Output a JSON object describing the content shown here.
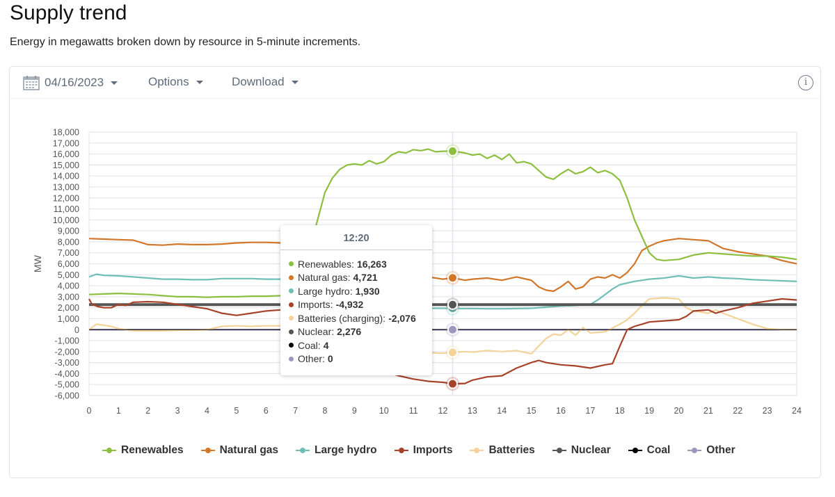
{
  "header": {
    "title": "Supply trend",
    "subtitle": "Energy in megawatts broken down by resource in 5-minute increments."
  },
  "toolbar": {
    "date_label": "04/16/2023",
    "options_label": "Options",
    "download_label": "Download",
    "calendar_icon": "calendar-icon",
    "info_icon": "info-icon"
  },
  "tooltip": {
    "time": "12:20",
    "rows": [
      {
        "label": "Renewables:",
        "value": "16,263",
        "color": "#8cbf3f"
      },
      {
        "label": "Natural gas:",
        "value": "4,721",
        "color": "#d2762a"
      },
      {
        "label": "Large hydro:",
        "value": "1,930",
        "color": "#6fbfb7"
      },
      {
        "label": "Imports:",
        "value": "-4,932",
        "color": "#a7422a"
      },
      {
        "label": "Batteries (charging):",
        "value": "-2,076",
        "color": "#f3d39a"
      },
      {
        "label": "Nuclear:",
        "value": "2,276",
        "color": "#555555"
      },
      {
        "label": "Coal:",
        "value": "4",
        "color": "#000000"
      },
      {
        "label": "Other:",
        "value": "0",
        "color": "#9d97bd"
      }
    ]
  },
  "chart_data": {
    "type": "line",
    "title": "Supply trend",
    "xlabel": "",
    "ylabel": "MW",
    "xlim": [
      0,
      24
    ],
    "ylim": [
      -6000,
      18000
    ],
    "x_ticks": [
      "0",
      "1",
      "2",
      "3",
      "4",
      "5",
      "6",
      "7",
      "8",
      "9",
      "10",
      "11",
      "12",
      "13",
      "14",
      "15",
      "16",
      "17",
      "18",
      "19",
      "20",
      "21",
      "22",
      "23",
      "24"
    ],
    "y_ticks": [
      "18,000",
      "17,000",
      "16,000",
      "15,000",
      "14,000",
      "13,000",
      "12,000",
      "11,000",
      "10,000",
      "9,000",
      "8,000",
      "7,000",
      "6,000",
      "5,000",
      "4,000",
      "3,000",
      "2,000",
      "1,000",
      "0",
      "-1,000",
      "-2,000",
      "-3,000",
      "-4,000",
      "-5,000",
      "-6,000"
    ],
    "grid": true,
    "legend_position": "bottom",
    "hover_x": 12.33,
    "series": [
      {
        "name": "Renewables",
        "color": "#8cbf3f",
        "x": [
          0,
          0.5,
          1,
          1.5,
          2,
          2.5,
          3,
          3.5,
          4,
          4.5,
          5,
          5.5,
          6,
          6.5,
          7,
          7.25,
          7.5,
          7.75,
          8,
          8.25,
          8.5,
          8.75,
          9,
          9.25,
          9.5,
          9.75,
          10,
          10.25,
          10.5,
          10.75,
          11,
          11.25,
          11.5,
          11.75,
          12,
          12.33,
          12.75,
          13,
          13.25,
          13.5,
          13.75,
          14,
          14.25,
          14.5,
          14.75,
          15,
          15.25,
          15.5,
          15.75,
          16,
          16.25,
          16.5,
          16.75,
          17,
          17.25,
          17.5,
          17.75,
          18,
          18.25,
          18.5,
          18.75,
          19,
          19.25,
          19.5,
          20,
          20.5,
          21,
          21.5,
          22,
          22.5,
          23,
          23.5,
          24
        ],
        "values": [
          3200,
          3250,
          3300,
          3250,
          3200,
          3100,
          3000,
          3000,
          2950,
          3000,
          3000,
          3050,
          3050,
          3100,
          3500,
          5000,
          7500,
          10000,
          12500,
          13800,
          14600,
          15000,
          15100,
          15000,
          15400,
          15100,
          15300,
          15900,
          16200,
          16100,
          16400,
          16300,
          16450,
          16200,
          16250,
          16263,
          16100,
          15900,
          16000,
          15600,
          15900,
          15500,
          16000,
          15200,
          15300,
          15100,
          14500,
          13900,
          13700,
          14200,
          14600,
          14200,
          14400,
          14800,
          14300,
          14500,
          14200,
          13600,
          12000,
          10000,
          8500,
          7000,
          6400,
          6300,
          6400,
          6800,
          7000,
          6900,
          6800,
          6700,
          6700,
          6600,
          6400
        ]
      },
      {
        "name": "Natural gas",
        "color": "#d2762a",
        "x": [
          0,
          0.5,
          1,
          1.5,
          2,
          2.5,
          3,
          3.5,
          4,
          4.5,
          5,
          5.5,
          6,
          6.5,
          7,
          7.5,
          8,
          8.5,
          9,
          9.5,
          10,
          10.5,
          11,
          11.5,
          12,
          12.33,
          12.75,
          13,
          13.5,
          14,
          14.5,
          15,
          15.25,
          15.5,
          15.75,
          16,
          16.25,
          16.5,
          16.75,
          17,
          17.25,
          17.5,
          17.75,
          18,
          18.25,
          18.5,
          18.75,
          19,
          19.25,
          19.5,
          20,
          20.5,
          21,
          21.5,
          22,
          22.5,
          23,
          23.5,
          24
        ],
        "values": [
          8300,
          8250,
          8200,
          8150,
          7750,
          7700,
          7800,
          7750,
          7750,
          7800,
          7900,
          7950,
          7950,
          7900,
          7850,
          7600,
          7000,
          6200,
          5500,
          5000,
          4700,
          4600,
          4700,
          4800,
          4600,
          4721,
          4500,
          4600,
          4700,
          4500,
          4800,
          4500,
          3900,
          3600,
          3500,
          3900,
          4400,
          3700,
          3900,
          4600,
          4800,
          4700,
          5000,
          4700,
          5200,
          6000,
          7200,
          7600,
          7900,
          8100,
          8300,
          8200,
          8100,
          7400,
          7100,
          6900,
          6700,
          6300,
          6000
        ]
      },
      {
        "name": "Large hydro",
        "color": "#6fbfb7",
        "x": [
          0,
          0.25,
          0.5,
          1,
          1.5,
          2,
          2.5,
          3,
          3.5,
          4,
          4.5,
          5,
          5.5,
          6,
          6.5,
          7,
          7.5,
          8,
          8.5,
          9,
          9.5,
          10,
          10.5,
          11,
          11.5,
          12,
          12.33,
          13,
          13.5,
          14,
          14.5,
          15,
          15.5,
          16,
          16.5,
          17,
          17.25,
          17.5,
          17.75,
          18,
          18.5,
          19,
          19.5,
          20,
          20.5,
          21,
          21.5,
          22,
          22.5,
          23,
          23.5,
          24
        ],
        "values": [
          4800,
          5050,
          4950,
          4900,
          4800,
          4700,
          4600,
          4600,
          4550,
          4550,
          4650,
          4650,
          4650,
          4600,
          4600,
          4600,
          4300,
          3500,
          2800,
          2400,
          2200,
          2050,
          2000,
          1950,
          1950,
          1950,
          1930,
          1920,
          1900,
          1900,
          1920,
          1950,
          2050,
          2150,
          2200,
          2300,
          2700,
          3200,
          3700,
          4100,
          4400,
          4600,
          4700,
          4900,
          4700,
          4800,
          4700,
          4650,
          4550,
          4500,
          4450,
          4400
        ]
      },
      {
        "name": "Imports",
        "color": "#a7422a",
        "x": [
          0,
          0.1,
          0.3,
          0.5,
          0.75,
          1,
          1.25,
          1.5,
          2,
          2.5,
          3,
          3.5,
          4,
          4.5,
          5,
          5.5,
          6,
          6.5,
          7,
          7.5,
          8,
          8.5,
          9,
          9.5,
          10,
          10.5,
          11,
          11.5,
          12,
          12.33,
          12.75,
          13,
          13.5,
          14,
          14.5,
          15,
          15.25,
          15.5,
          15.75,
          16,
          16.5,
          17,
          17.5,
          17.75,
          18,
          18.25,
          18.5,
          18.75,
          19,
          19.5,
          20,
          20.25,
          20.5,
          21,
          21.25,
          21.5,
          22,
          22.5,
          23,
          23.5,
          24
        ],
        "values": [
          2800,
          2300,
          2100,
          2000,
          2000,
          2300,
          2200,
          2500,
          2550,
          2500,
          2300,
          2100,
          1900,
          1500,
          1300,
          1500,
          1700,
          1800,
          2000,
          1500,
          400,
          -1500,
          -2500,
          -3200,
          -3800,
          -4200,
          -4500,
          -4700,
          -4800,
          -4932,
          -4900,
          -4600,
          -4300,
          -4200,
          -3500,
          -3000,
          -2800,
          -3000,
          -3100,
          -3200,
          -3300,
          -3500,
          -3200,
          -3100,
          -1500,
          0,
          300,
          500,
          700,
          800,
          900,
          1200,
          1700,
          1800,
          1500,
          1700,
          2000,
          2400,
          2600,
          2800,
          2700
        ]
      },
      {
        "name": "Batteries",
        "color": "#f3d39a",
        "x": [
          0,
          0.25,
          0.5,
          0.75,
          1,
          1.5,
          2,
          2.5,
          3,
          3.5,
          4,
          4.5,
          5,
          5.5,
          6,
          6.5,
          7,
          7.5,
          8,
          8.5,
          9,
          9.5,
          10,
          10.5,
          11,
          11.5,
          12,
          12.33,
          12.75,
          13,
          13.5,
          14,
          14.5,
          15,
          15.25,
          15.5,
          15.75,
          16,
          16.25,
          16.5,
          16.75,
          17,
          17.5,
          18,
          18.25,
          18.5,
          18.75,
          19,
          19.5,
          20,
          20.25,
          20.5,
          21,
          21.25,
          21.5,
          22,
          22.5,
          23,
          23.5,
          24
        ],
        "values": [
          0,
          500,
          400,
          300,
          100,
          -100,
          -100,
          -100,
          -50,
          -50,
          0,
          300,
          350,
          300,
          350,
          350,
          500,
          -200,
          -1200,
          -2000,
          -2400,
          -2300,
          -2200,
          -2100,
          -2100,
          -2100,
          -2150,
          -2076,
          -2000,
          -2050,
          -1900,
          -2000,
          -1900,
          -2200,
          -1500,
          -800,
          -400,
          -500,
          0,
          -500,
          200,
          -300,
          -200,
          500,
          900,
          1500,
          2200,
          2800,
          2900,
          2800,
          2000,
          1700,
          1500,
          1800,
          1500,
          1000,
          500,
          100,
          0,
          0
        ]
      },
      {
        "name": "Nuclear",
        "color": "#555555",
        "x": [
          0,
          24
        ],
        "values": [
          2276,
          2276
        ]
      },
      {
        "name": "Coal",
        "color": "#000000",
        "x": [
          0,
          24
        ],
        "values": [
          4,
          4
        ]
      },
      {
        "name": "Other",
        "color": "#9d97bd",
        "x": [
          0,
          24
        ],
        "values": [
          0,
          0
        ]
      }
    ]
  }
}
